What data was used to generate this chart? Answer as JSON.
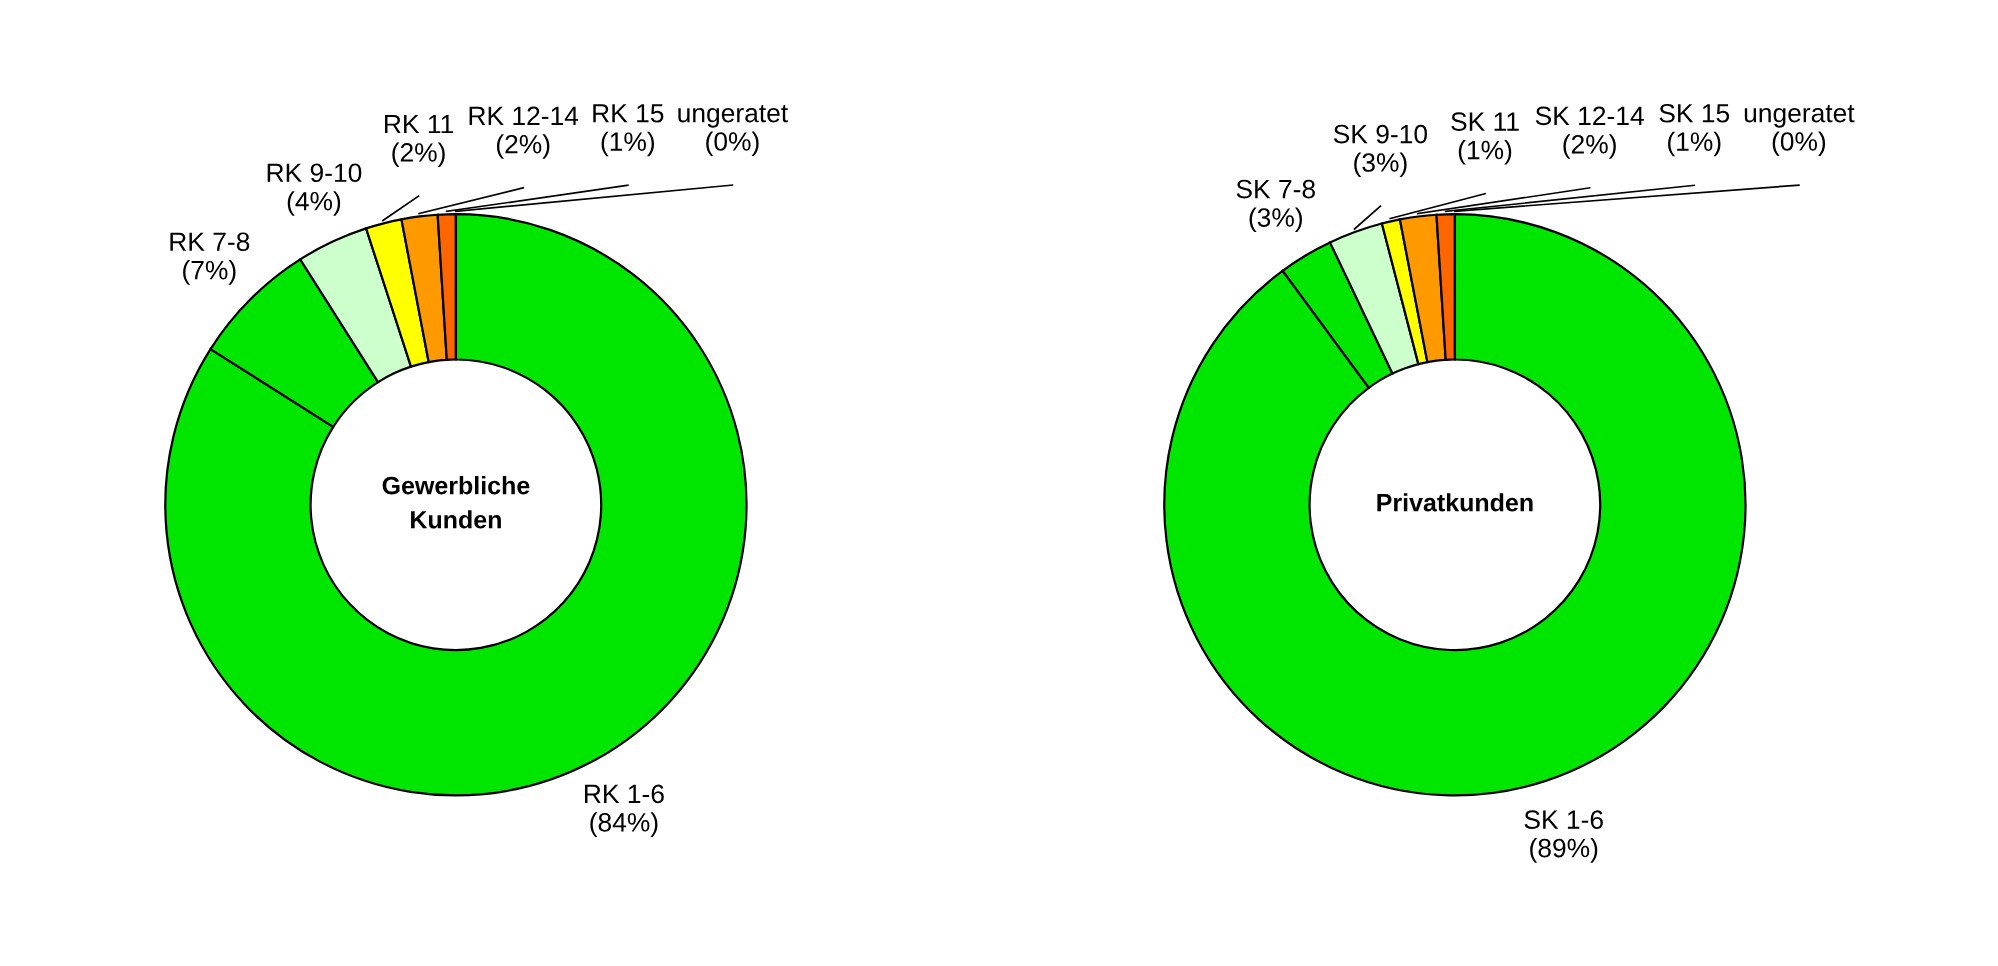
{
  "chart_data": [
    {
      "type": "donut",
      "title": "Gewerbliche\nKunden",
      "categories": [
        "RK 1-6",
        "RK 7-8",
        "RK 9-10",
        "RK 11",
        "RK 12-14",
        "RK 15",
        "ungeratet"
      ],
      "values": [
        84,
        7,
        4,
        2,
        2,
        1,
        0
      ],
      "value_labels": [
        "(84%)",
        "(7%)",
        "(4%)",
        "(2%)",
        "(2%)",
        "(1%)",
        "(0%)"
      ],
      "colors": [
        "#00e600",
        "#00e600",
        "#ccffcc",
        "#ffff00",
        "#ff9900",
        "#ff6600",
        "#cc0000"
      ]
    },
    {
      "type": "donut",
      "title": "Privatkunden",
      "categories": [
        "SK 1-6",
        "SK 7-8",
        "SK 9-10",
        "SK 11",
        "SK 12-14",
        "SK 15",
        "ungeratet"
      ],
      "values": [
        89,
        3,
        3,
        1,
        2,
        1,
        0
      ],
      "value_labels": [
        "(89%)",
        "(3%)",
        "(3%)",
        "(1%)",
        "(2%)",
        "(1%)",
        "(0%)"
      ],
      "colors": [
        "#00e600",
        "#00e600",
        "#ccffcc",
        "#ffff00",
        "#ff9900",
        "#ff6600",
        "#cc0000"
      ]
    }
  ]
}
